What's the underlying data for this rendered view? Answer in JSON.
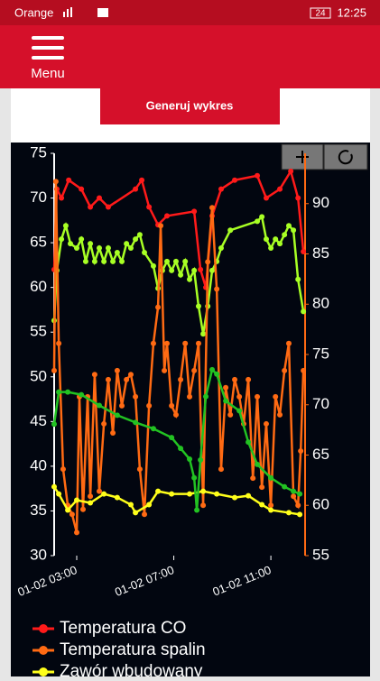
{
  "status_bar": {
    "carrier": "Orange",
    "battery": "24",
    "time": "12:25"
  },
  "header": {
    "menu": "Menu"
  },
  "button": {
    "label": "Generuj wykres"
  },
  "chart_data": {
    "type": "line",
    "xlim": [
      2.07,
      12.41
    ],
    "xticks": [
      {
        "value": 3,
        "label": "01-02 03:00"
      },
      {
        "value": 7,
        "label": "01-02 07:00"
      },
      {
        "value": 11,
        "label": "01-02 11:00"
      }
    ],
    "ylim": [
      30,
      75
    ],
    "yticks": [
      30,
      35,
      40,
      45,
      50,
      55,
      60,
      65,
      70,
      75
    ],
    "y2lim": [
      55,
      95
    ],
    "y2ticks": [
      55,
      60,
      65,
      70,
      75,
      80,
      85,
      90
    ],
    "series": [
      {
        "name": "Temperatura CO",
        "color": "#ff1a1a",
        "x": [
          2.07,
          2.18,
          2.37,
          2.67,
          3.19,
          3.56,
          3.93,
          4.3,
          5.42,
          5.68,
          5.98,
          6.35,
          6.72,
          7.84,
          8.1,
          8.32,
          8.58,
          8.95,
          9.51,
          10.44,
          10.81,
          11.37,
          11.82,
          12.12,
          12.34
        ],
        "values": [
          62,
          71,
          70,
          72,
          71,
          69,
          70,
          69,
          71,
          72,
          69,
          67,
          68,
          68.5,
          62,
          60,
          68,
          71,
          72,
          72.5,
          70,
          71,
          73,
          70,
          64
        ]
      },
      {
        "color": "#a8ff24",
        "x": [
          2.07,
          2.18,
          2.37,
          2.55,
          2.74,
          3.0,
          3.19,
          3.37,
          3.56,
          3.74,
          3.93,
          4.12,
          4.3,
          4.49,
          4.67,
          4.86,
          5.05,
          5.23,
          5.42,
          5.6,
          5.79,
          6.16,
          6.35,
          6.53,
          6.72,
          6.91,
          7.09,
          7.28,
          7.47,
          7.65,
          7.84,
          8.02,
          8.21,
          8.4,
          8.58,
          8.77,
          8.95,
          9.33,
          10.44,
          10.63,
          10.81,
          11.0,
          11.19,
          11.37,
          11.56,
          11.74,
          11.93,
          12.12,
          12.34
        ],
        "values": [
          56.3,
          61.9,
          65.4,
          66.9,
          64.9,
          64.4,
          65.4,
          62.9,
          64.9,
          62.9,
          64.4,
          62.9,
          64.4,
          62.9,
          63.9,
          62.9,
          64.9,
          64.4,
          65.4,
          65.9,
          63.9,
          62.4,
          59.9,
          61.9,
          62.9,
          61.9,
          62.9,
          61.4,
          62.9,
          60.9,
          61.9,
          57.9,
          54.8,
          57.9,
          61.9,
          62.9,
          64.4,
          66.4,
          67.4,
          67.9,
          65.4,
          64.4,
          65.4,
          64.9,
          65.9,
          66.9,
          66.4,
          60.9,
          57.3
        ]
      },
      {
        "name": "Temperatura spalin",
        "color": "#ff6a13",
        "axis": "y2",
        "x": [
          2.07,
          2.14,
          2.26,
          2.44,
          2.63,
          2.81,
          3.0,
          3.11,
          3.26,
          3.45,
          3.56,
          3.74,
          3.93,
          4.12,
          4.3,
          4.49,
          4.67,
          4.86,
          5.05,
          5.23,
          5.42,
          5.6,
          5.79,
          5.98,
          6.16,
          6.35,
          6.46,
          6.61,
          6.72,
          6.91,
          7.09,
          7.28,
          7.47,
          7.65,
          7.84,
          8.02,
          8.21,
          8.4,
          8.58,
          8.77,
          8.95,
          9.14,
          9.33,
          9.51,
          9.7,
          9.88,
          10.07,
          10.26,
          10.44,
          10.63,
          10.81,
          11.0,
          11.19,
          11.37,
          11.56,
          11.74,
          11.93,
          12.12,
          12.23,
          12.34
        ],
        "values": [
          73.4,
          92.2,
          76.1,
          63.6,
          60.0,
          59.1,
          57.3,
          70.8,
          59.6,
          70.8,
          60.9,
          73.0,
          61.4,
          68.1,
          72.5,
          67.2,
          73.4,
          69.9,
          72.5,
          73.0,
          70.8,
          63.6,
          59.1,
          69.9,
          76.1,
          79.7,
          87.8,
          73.4,
          76.1,
          69.9,
          69.0,
          72.5,
          76.1,
          70.8,
          73.4,
          76.1,
          60.0,
          84.2,
          89.6,
          81.5,
          63.6,
          71.7,
          69.0,
          72.5,
          70.8,
          68.1,
          72.5,
          62.7,
          70.8,
          61.8,
          68.1,
          60.0,
          70.8,
          69.0,
          73.4,
          76.1,
          60.9,
          60.0,
          65.4,
          73.4
        ]
      },
      {
        "name": "Zawór wbudowany",
        "color": "#ffff1a",
        "x": [
          2.07,
          2.26,
          2.63,
          3.0,
          3.56,
          4.12,
          4.67,
          5.23,
          5.42,
          5.98,
          6.35,
          6.91,
          7.65,
          8.21,
          8.77,
          9.51,
          10.07,
          10.63,
          11.0,
          11.74,
          12.19
        ],
        "values": [
          37.7,
          36.9,
          35.1,
          36.2,
          35.9,
          36.9,
          36.5,
          35.7,
          34.8,
          35.7,
          37.2,
          36.9,
          36.9,
          37.2,
          36.9,
          36.5,
          36.7,
          35.7,
          35.1,
          34.8,
          34.6
        ]
      },
      {
        "color": "#22c222",
        "x": [
          2.07,
          2.26,
          2.63,
          3.19,
          3.93,
          4.67,
          5.42,
          6.16,
          6.91,
          7.28,
          7.65,
          7.84,
          7.95,
          8.1,
          8.32,
          8.58,
          8.77,
          9.14,
          9.7,
          10.07,
          10.44,
          11.0,
          11.56,
          11.93,
          12.19
        ],
        "values": [
          44.7,
          48.3,
          48.3,
          48,
          46.8,
          45.7,
          44.9,
          44.2,
          43.2,
          42,
          40.8,
          38.7,
          35.1,
          40.7,
          47.8,
          50.8,
          50.3,
          47.3,
          46.2,
          42.7,
          40.2,
          38.7,
          37.7,
          37.2,
          36.9
        ]
      }
    ]
  }
}
